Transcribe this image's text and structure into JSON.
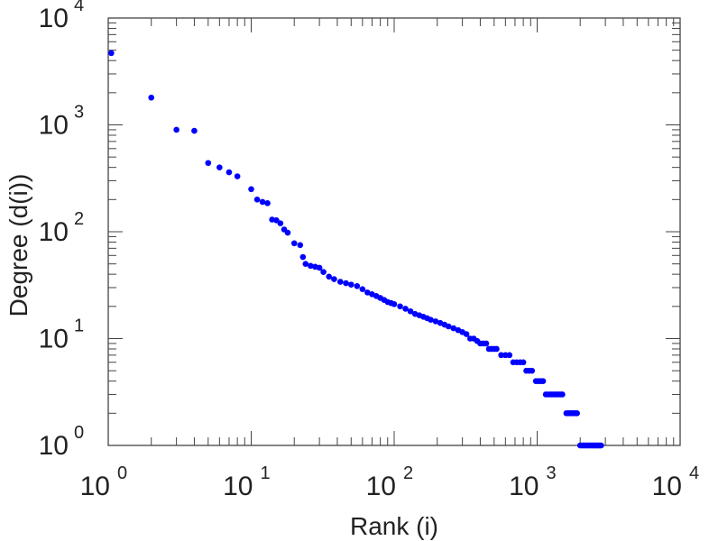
{
  "chart_data": {
    "type": "scatter",
    "title": "",
    "xlabel": "Rank (i)",
    "ylabel": "Degree (d(i))",
    "x_scale": "log",
    "y_scale": "log",
    "xlim": [
      1,
      10000
    ],
    "ylim": [
      1,
      10000
    ],
    "grid": false,
    "legend": "none",
    "marker_color": "#0000ff",
    "axis_color": "#444444",
    "x_ticks": [
      {
        "base": "10",
        "exp": "0",
        "value": 1
      },
      {
        "base": "10",
        "exp": "1",
        "value": 10
      },
      {
        "base": "10",
        "exp": "2",
        "value": 100
      },
      {
        "base": "10",
        "exp": "3",
        "value": 1000
      },
      {
        "base": "10",
        "exp": "4",
        "value": 10000
      }
    ],
    "y_ticks": [
      {
        "base": "10",
        "exp": "0",
        "value": 1
      },
      {
        "base": "10",
        "exp": "1",
        "value": 10
      },
      {
        "base": "10",
        "exp": "2",
        "value": 100
      },
      {
        "base": "10",
        "exp": "3",
        "value": 1000
      },
      {
        "base": "10",
        "exp": "4",
        "value": 10000
      }
    ],
    "points": [
      [
        1.05,
        4700
      ],
      [
        2,
        1800
      ],
      [
        3,
        900
      ],
      [
        4,
        880
      ],
      [
        5,
        440
      ],
      [
        6,
        400
      ],
      [
        7,
        360
      ],
      [
        8,
        330
      ],
      [
        10,
        250
      ],
      [
        11,
        200
      ],
      [
        12,
        190
      ],
      [
        13,
        185
      ],
      [
        14,
        130
      ],
      [
        15,
        128
      ],
      [
        16,
        120
      ],
      [
        17,
        105
      ],
      [
        18,
        98
      ],
      [
        20,
        78
      ],
      [
        22,
        75
      ],
      [
        23,
        58
      ],
      [
        24,
        50
      ],
      [
        26,
        48
      ],
      [
        28,
        47
      ],
      [
        30,
        46
      ],
      [
        32,
        42
      ],
      [
        35,
        38
      ],
      [
        38,
        36
      ],
      [
        42,
        34
      ],
      [
        46,
        33
      ],
      [
        50,
        32
      ],
      [
        55,
        31
      ],
      [
        60,
        29
      ],
      [
        65,
        27
      ],
      [
        70,
        26
      ],
      [
        75,
        25
      ],
      [
        80,
        24
      ],
      [
        85,
        23
      ],
      [
        90,
        22
      ],
      [
        95,
        21.5
      ],
      [
        100,
        21
      ],
      [
        110,
        20
      ],
      [
        120,
        19
      ],
      [
        130,
        18
      ],
      [
        140,
        17
      ],
      [
        150,
        16.5
      ],
      [
        160,
        16
      ],
      [
        170,
        15.5
      ],
      [
        180,
        15
      ],
      [
        195,
        14.5
      ],
      [
        210,
        14
      ],
      [
        225,
        13.5
      ],
      [
        240,
        13
      ],
      [
        260,
        12.5
      ],
      [
        280,
        12
      ],
      [
        300,
        11.5
      ],
      [
        320,
        11
      ],
      [
        340,
        10
      ],
      [
        360,
        10
      ],
      [
        380,
        9.5
      ],
      [
        400,
        9
      ],
      [
        420,
        9
      ],
      [
        440,
        9
      ],
      [
        460,
        8
      ],
      [
        480,
        8
      ],
      [
        500,
        8
      ],
      [
        520,
        8
      ],
      [
        560,
        7
      ],
      [
        600,
        7
      ],
      [
        640,
        7
      ],
      [
        680,
        6
      ],
      [
        720,
        6
      ],
      [
        760,
        6
      ],
      [
        800,
        6
      ],
      [
        840,
        5
      ],
      [
        880,
        5
      ],
      [
        920,
        5
      ],
      [
        980,
        4
      ],
      [
        1020,
        4
      ],
      [
        1060,
        4
      ],
      [
        1100,
        4
      ],
      [
        1150,
        3
      ],
      [
        1200,
        3
      ],
      [
        1250,
        3
      ],
      [
        1300,
        3
      ],
      [
        1350,
        3
      ],
      [
        1400,
        3
      ],
      [
        1450,
        3
      ],
      [
        1500,
        3
      ],
      [
        1600,
        2
      ],
      [
        1650,
        2
      ],
      [
        1700,
        2
      ],
      [
        1750,
        2
      ],
      [
        1800,
        2
      ],
      [
        1850,
        2
      ],
      [
        1900,
        2
      ],
      [
        2000,
        1
      ],
      [
        2050,
        1
      ],
      [
        2100,
        1
      ],
      [
        2150,
        1
      ],
      [
        2200,
        1
      ],
      [
        2250,
        1
      ],
      [
        2300,
        1
      ],
      [
        2350,
        1
      ],
      [
        2400,
        1
      ],
      [
        2450,
        1
      ],
      [
        2500,
        1
      ],
      [
        2550,
        1
      ],
      [
        2600,
        1
      ],
      [
        2650,
        1
      ],
      [
        2700,
        1
      ],
      [
        2750,
        1
      ],
      [
        2800,
        1
      ]
    ]
  }
}
